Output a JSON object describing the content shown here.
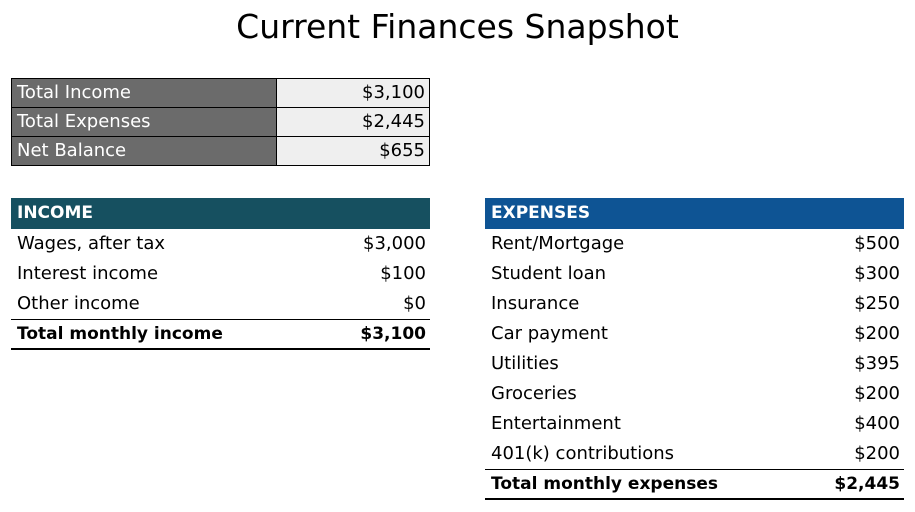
{
  "title": "Current Finances Snapshot",
  "summary": [
    {
      "label": "Total Income",
      "value": "$3,100"
    },
    {
      "label": "Total Expenses",
      "value": "$2,445"
    },
    {
      "label": "Net Balance",
      "value": "$655"
    }
  ],
  "income": {
    "header": "INCOME",
    "items": [
      {
        "label": "Wages, after tax",
        "value": "$3,000"
      },
      {
        "label": "Interest income",
        "value": "$100"
      },
      {
        "label": "Other income",
        "value": "$0"
      }
    ],
    "total_label": "Total monthly income",
    "total_value": "$3,100"
  },
  "expenses": {
    "header": "EXPENSES",
    "items": [
      {
        "label": "Rent/Mortgage",
        "value": "$500"
      },
      {
        "label": "Student loan",
        "value": "$300"
      },
      {
        "label": "Insurance",
        "value": "$250"
      },
      {
        "label": "Car payment",
        "value": "$200"
      },
      {
        "label": "Utilities",
        "value": "$395"
      },
      {
        "label": "Groceries",
        "value": "$200"
      },
      {
        "label": "Entertainment",
        "value": "$400"
      },
      {
        "label": "401(k) contributions",
        "value": "$200"
      }
    ],
    "total_label": "Total monthly expenses",
    "total_value": "$2,445"
  },
  "colors": {
    "summary_label_bg": "#6b6b6b",
    "summary_value_bg": "#efefef",
    "income_header_bg": "#165060",
    "expenses_header_bg": "#0e5494"
  }
}
